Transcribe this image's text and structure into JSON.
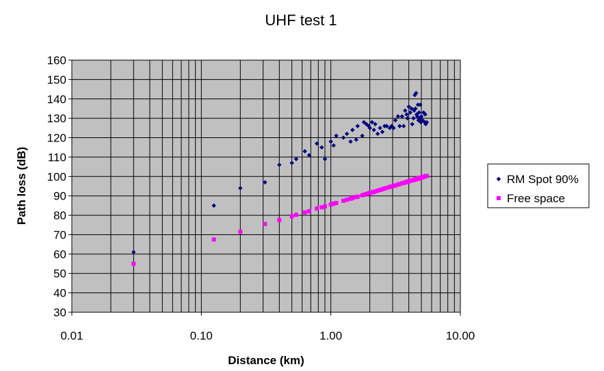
{
  "chart_data": {
    "type": "scatter",
    "title": "UHF test 1",
    "xlabel": "Distance (km)",
    "ylabel": "Path loss (dB)",
    "x_scale": "log",
    "xlim": [
      0.01,
      10
    ],
    "ylim": [
      30,
      160
    ],
    "x_tick_labels": [
      "0.01",
      "0.10",
      "1.00",
      "10.00"
    ],
    "y_tick_labels": [
      "30",
      "40",
      "50",
      "60",
      "70",
      "80",
      "90",
      "100",
      "110",
      "120",
      "130",
      "140",
      "150",
      "160"
    ],
    "grid": true,
    "legend_position": "right",
    "background_color": "#c0c0c0",
    "series": [
      {
        "name": "RM Spot 90%",
        "color": "#000080",
        "marker": "diamond",
        "points": [
          [
            0.03,
            61
          ],
          [
            0.125,
            85
          ],
          [
            0.2,
            94
          ],
          [
            0.31,
            97
          ],
          [
            0.4,
            106
          ],
          [
            0.5,
            107
          ],
          [
            0.54,
            109
          ],
          [
            0.63,
            113
          ],
          [
            0.68,
            111
          ],
          [
            0.78,
            117
          ],
          [
            0.85,
            115
          ],
          [
            0.9,
            109
          ],
          [
            1.0,
            118
          ],
          [
            1.05,
            116
          ],
          [
            1.1,
            121
          ],
          [
            1.25,
            120
          ],
          [
            1.33,
            122
          ],
          [
            1.42,
            118
          ],
          [
            1.47,
            124
          ],
          [
            1.57,
            119
          ],
          [
            1.61,
            126
          ],
          [
            1.75,
            121
          ],
          [
            1.8,
            128
          ],
          [
            1.88,
            127
          ],
          [
            1.96,
            126
          ],
          [
            2.0,
            125
          ],
          [
            2.08,
            128
          ],
          [
            2.15,
            124
          ],
          [
            2.2,
            127
          ],
          [
            2.3,
            122
          ],
          [
            2.4,
            125
          ],
          [
            2.5,
            123
          ],
          [
            2.6,
            126
          ],
          [
            2.7,
            126
          ],
          [
            2.85,
            125
          ],
          [
            2.95,
            126
          ],
          [
            3.05,
            125
          ],
          [
            3.15,
            129
          ],
          [
            3.3,
            131
          ],
          [
            3.4,
            126
          ],
          [
            3.55,
            131
          ],
          [
            3.65,
            126
          ],
          [
            3.75,
            134
          ],
          [
            3.85,
            132
          ],
          [
            3.9,
            130
          ],
          [
            4.0,
            136
          ],
          [
            4.1,
            133
          ],
          [
            4.2,
            135
          ],
          [
            4.25,
            127
          ],
          [
            4.35,
            130
          ],
          [
            4.4,
            134
          ],
          [
            4.45,
            142
          ],
          [
            4.5,
            135
          ],
          [
            4.55,
            143
          ],
          [
            4.6,
            132
          ],
          [
            4.65,
            131
          ],
          [
            4.7,
            137
          ],
          [
            4.75,
            129
          ],
          [
            4.8,
            133
          ],
          [
            4.85,
            130
          ],
          [
            4.9,
            137
          ],
          [
            4.95,
            128
          ],
          [
            5.0,
            131
          ],
          [
            5.1,
            129
          ],
          [
            5.2,
            133
          ],
          [
            5.3,
            128
          ],
          [
            5.35,
            132
          ],
          [
            5.4,
            127
          ],
          [
            5.5,
            128
          ]
        ]
      },
      {
        "name": "Free space",
        "color": "#ff00ff",
        "marker": "square",
        "points": [
          [
            0.03,
            55
          ],
          [
            0.125,
            67.5
          ],
          [
            0.2,
            71.5
          ],
          [
            0.31,
            75.5
          ],
          [
            0.4,
            77.5
          ],
          [
            0.5,
            79.5
          ],
          [
            0.54,
            80.2
          ],
          [
            0.63,
            81.5
          ],
          [
            0.68,
            82.1
          ],
          [
            0.78,
            83.5
          ],
          [
            0.85,
            84.1
          ],
          [
            0.9,
            84.6
          ],
          [
            1.0,
            85.5
          ],
          [
            1.05,
            86.0
          ],
          [
            1.1,
            86.3
          ],
          [
            1.25,
            87.5
          ],
          [
            1.33,
            88.0
          ],
          [
            1.42,
            88.5
          ],
          [
            1.47,
            88.9
          ],
          [
            1.57,
            89.4
          ],
          [
            1.61,
            89.6
          ],
          [
            1.75,
            90.3
          ],
          [
            1.8,
            90.6
          ],
          [
            1.88,
            91.0
          ],
          [
            1.96,
            91.3
          ],
          [
            2.0,
            91.5
          ],
          [
            2.08,
            91.8
          ],
          [
            2.15,
            92.1
          ],
          [
            2.2,
            92.3
          ],
          [
            2.3,
            92.7
          ],
          [
            2.4,
            93.1
          ],
          [
            2.5,
            93.4
          ],
          [
            2.6,
            93.8
          ],
          [
            2.7,
            94.1
          ],
          [
            2.85,
            94.6
          ],
          [
            2.95,
            94.9
          ],
          [
            3.05,
            95.2
          ],
          [
            3.15,
            95.4
          ],
          [
            3.3,
            95.8
          ],
          [
            3.4,
            96.1
          ],
          [
            3.55,
            96.5
          ],
          [
            3.65,
            96.7
          ],
          [
            3.75,
            96.9
          ],
          [
            3.85,
            97.2
          ],
          [
            3.9,
            97.3
          ],
          [
            4.0,
            97.5
          ],
          [
            4.1,
            97.7
          ],
          [
            4.2,
            97.9
          ],
          [
            4.25,
            98.0
          ],
          [
            4.35,
            98.2
          ],
          [
            4.4,
            98.3
          ],
          [
            4.45,
            98.4
          ],
          [
            4.5,
            98.5
          ],
          [
            4.55,
            98.6
          ],
          [
            4.6,
            98.7
          ],
          [
            4.65,
            98.8
          ],
          [
            4.7,
            98.9
          ],
          [
            4.75,
            99.0
          ],
          [
            4.8,
            99.1
          ],
          [
            4.85,
            99.2
          ],
          [
            4.9,
            99.3
          ],
          [
            4.95,
            99.4
          ],
          [
            5.0,
            99.5
          ],
          [
            5.1,
            99.6
          ],
          [
            5.2,
            99.8
          ],
          [
            5.3,
            100.0
          ],
          [
            5.35,
            100.1
          ],
          [
            5.4,
            100.2
          ],
          [
            5.5,
            100.3
          ]
        ]
      }
    ]
  }
}
